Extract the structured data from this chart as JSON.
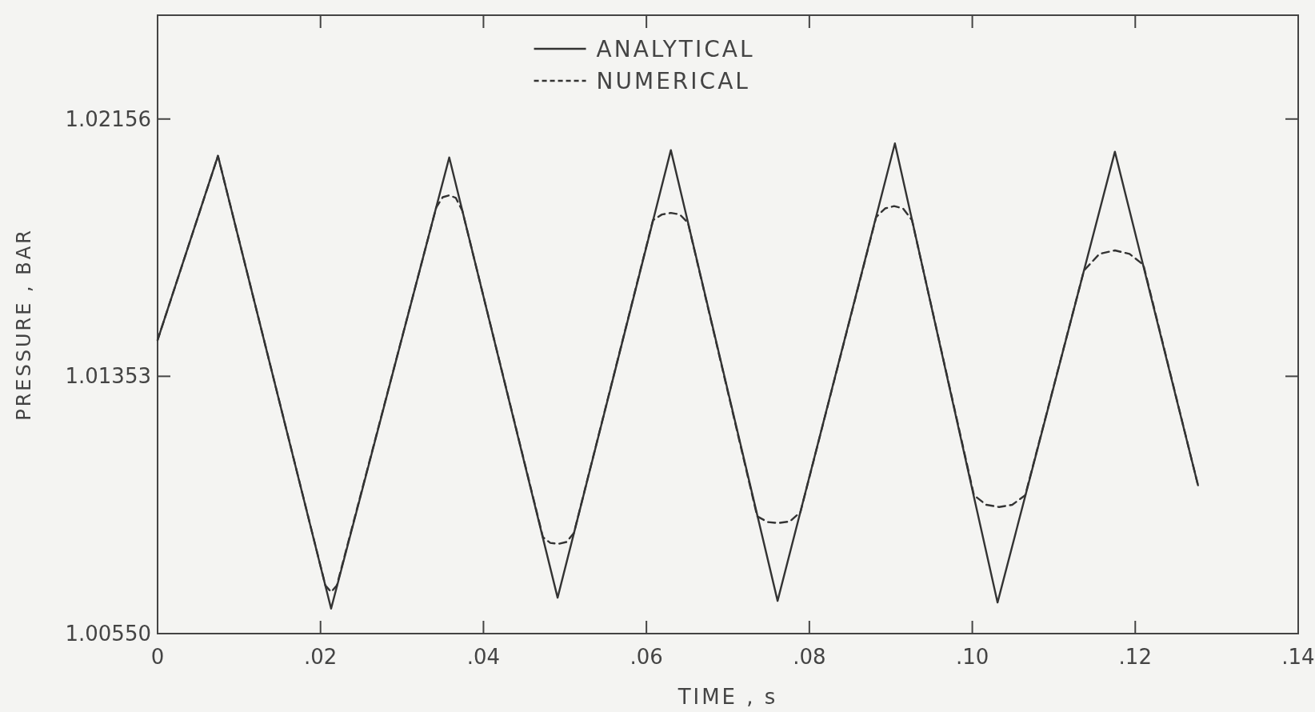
{
  "chart_data": {
    "type": "line",
    "xlabel": "TIME , s",
    "ylabel": "PRESSURE , BAR",
    "xlim": [
      0,
      0.14
    ],
    "xticks": [
      {
        "value": 0,
        "label": "0"
      },
      {
        "value": 0.02,
        "label": ".02"
      },
      {
        "value": 0.04,
        "label": ".04"
      },
      {
        "value": 0.06,
        "label": ".06"
      },
      {
        "value": 0.08,
        "label": ".08"
      },
      {
        "value": 0.1,
        "label": ".10"
      },
      {
        "value": 0.12,
        "label": ".12"
      },
      {
        "value": 0.14,
        "label": ".14"
      }
    ],
    "ylim": [
      1.0055,
      1.0248
    ],
    "yticks": [
      {
        "value": 1.0055,
        "label": "1.00550"
      },
      {
        "value": 1.01353,
        "label": "1.01353"
      },
      {
        "value": 1.02156,
        "label": "1.02156"
      }
    ],
    "legend": "top",
    "grid": false,
    "series": [
      {
        "name": "ANALYTICAL",
        "color": "#333333",
        "line_style": "solid",
        "x": [
          0,
          0.00741,
          0.0213,
          0.0358,
          0.0491,
          0.063,
          0.0761,
          0.0905,
          0.1031,
          0.1175,
          0.1277
        ],
        "values": [
          1.01466,
          1.02041,
          1.00628,
          1.02036,
          1.00662,
          1.02059,
          1.00652,
          1.0208,
          1.00647,
          1.02054,
          1.01013
        ]
      },
      {
        "name": "NUMERICAL",
        "color": "#333333",
        "line_style": "dashed",
        "x": [
          0,
          0.00741,
          0.0206,
          0.0213,
          0.022,
          0.0342,
          0.035,
          0.0358,
          0.0366,
          0.0374,
          0.0473,
          0.0482,
          0.0492,
          0.0502,
          0.0511,
          0.0608,
          0.0619,
          0.063,
          0.0641,
          0.0651,
          0.0736,
          0.0749,
          0.0762,
          0.0776,
          0.0789,
          0.0882,
          0.0893,
          0.0904,
          0.0915,
          0.0926,
          0.1002,
          0.1017,
          0.1033,
          0.1049,
          0.1065,
          0.1137,
          0.1156,
          0.1175,
          0.1193,
          0.121,
          0.1277
        ],
        "values": [
          1.01466,
          1.02041,
          1.007,
          1.0068,
          1.007,
          1.0188,
          1.01912,
          1.01918,
          1.0191,
          1.0187,
          1.00851,
          1.00833,
          1.0083,
          1.00836,
          1.00864,
          1.0184,
          1.01858,
          1.01863,
          1.01858,
          1.01832,
          1.00916,
          1.00898,
          1.00895,
          1.009,
          1.00929,
          1.0185,
          1.01877,
          1.01884,
          1.01877,
          1.0184,
          1.00982,
          1.00952,
          1.00945,
          1.00952,
          1.00982,
          1.01683,
          1.01735,
          1.01746,
          1.01735,
          1.01701,
          1.01013
        ]
      }
    ]
  }
}
